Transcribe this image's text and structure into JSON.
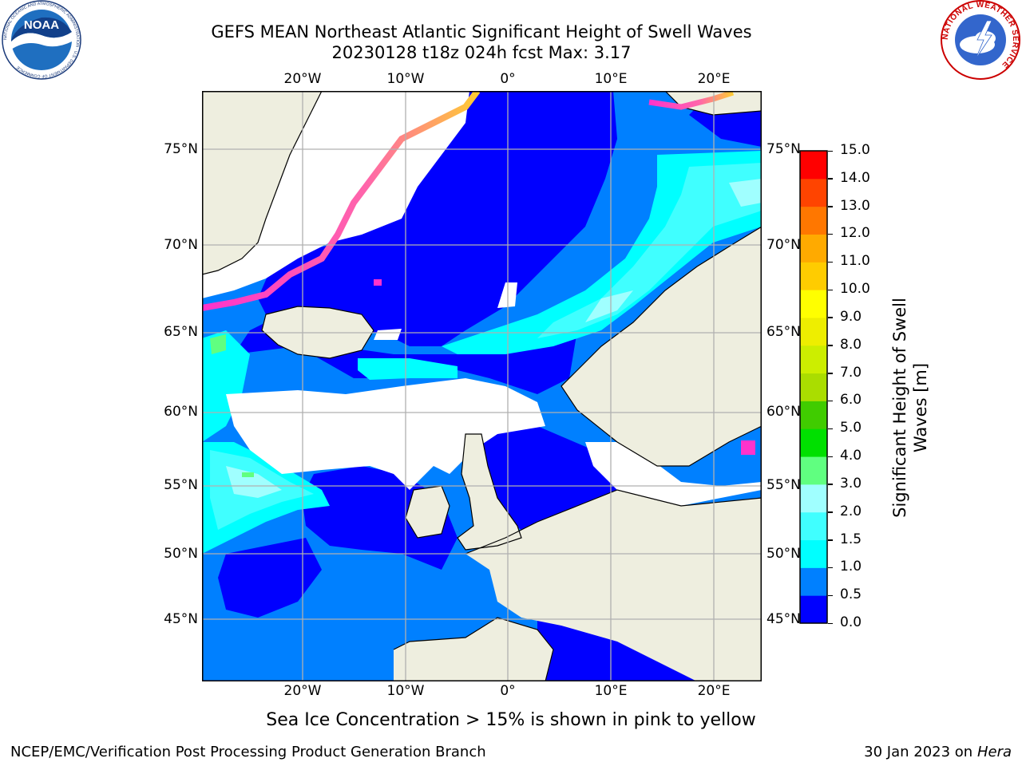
{
  "header": {
    "title_line1": "GEFS MEAN Northeast Atlantic Significant Height of Swell Waves",
    "title_line2": "20230128 t18z 024h fcst   Max: 3.17"
  },
  "logos": {
    "noaa_text": "NOAA",
    "noaa_ring_text": "NATIONAL OCEANIC AND ATMOSPHERIC ADMINISTRATION · U.S. DEPARTMENT OF COMMERCE",
    "nws_ring_text": "NATIONAL WEATHER SERVICE"
  },
  "map": {
    "lon_labels": [
      "20°W",
      "10°W",
      "0°",
      "10°E",
      "20°E"
    ],
    "lat_labels": [
      "75°N",
      "70°N",
      "65°N",
      "60°N",
      "55°N",
      "50°N",
      "45°N"
    ],
    "colors": {
      "land": "#eeeedf",
      "coast": "#000000",
      "grid": "#b0b0b0",
      "ice_pink": "#ff33cc",
      "ice_orange": "#ff9933",
      "ice_yellow": "#ffdd00",
      "no_data": "#ffffff"
    }
  },
  "colorbar": {
    "label": "Significant Height of Swell Waves [m]",
    "ticks": [
      "0.0",
      "0.5",
      "1.0",
      "1.5",
      "2.0",
      "3.0",
      "4.0",
      "5.0",
      "6.0",
      "7.0",
      "8.0",
      "9.0",
      "10.0",
      "11.0",
      "12.0",
      "13.0",
      "14.0",
      "15.0"
    ],
    "colors": [
      "#0000ff",
      "#0080ff",
      "#00ffff",
      "#40ffff",
      "#a0ffff",
      "#60ff80",
      "#00e000",
      "#40cc00",
      "#aadd00",
      "#ccee00",
      "#eeee00",
      "#ffff00",
      "#ffcc00",
      "#ffaa00",
      "#ff7700",
      "#ff4400",
      "#ff0000"
    ]
  },
  "note": "Sea Ice Concentration > 15% is shown in pink to yellow",
  "footer": {
    "left": "NCEP/EMC/Verification Post Processing Product Generation Branch",
    "right_date": "30 Jan 2023 on ",
    "right_machine": "Hera"
  }
}
